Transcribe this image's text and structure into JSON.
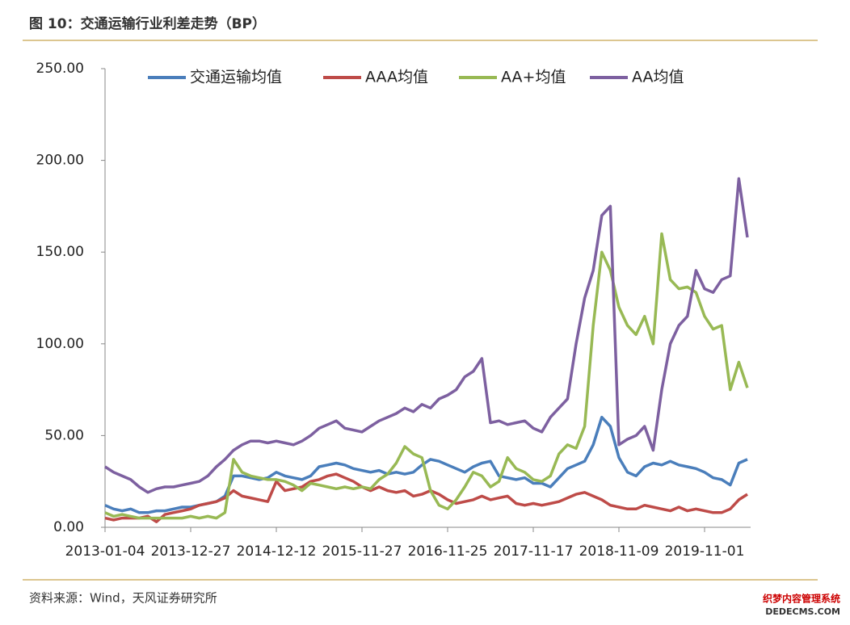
{
  "header": {
    "title": "图 10：交通运输行业利差走势（BP）"
  },
  "chart_data": {
    "type": "line",
    "categories": [
      "2013-01-04",
      null,
      null,
      null,
      null,
      null,
      null,
      null,
      null,
      null,
      "2013-12-27",
      null,
      null,
      null,
      null,
      null,
      null,
      null,
      null,
      null,
      "2014-12-12",
      null,
      null,
      null,
      null,
      null,
      null,
      null,
      null,
      null,
      "2015-11-27",
      null,
      null,
      null,
      null,
      null,
      null,
      null,
      null,
      null,
      "2016-11-25",
      null,
      null,
      null,
      null,
      null,
      null,
      null,
      null,
      null,
      "2017-11-17",
      null,
      null,
      null,
      null,
      null,
      null,
      null,
      null,
      null,
      "2018-11-09",
      null,
      null,
      null,
      null,
      null,
      null,
      null,
      null,
      null,
      "2019-11-01",
      null,
      null,
      null,
      null,
      null
    ],
    "series": [
      {
        "name": "交通运输均值",
        "color": "#4a7ebb",
        "values": [
          12,
          10,
          9,
          10,
          8,
          8,
          9,
          9,
          10,
          11,
          11,
          12,
          13,
          14,
          17,
          28,
          28,
          27,
          26,
          27,
          30,
          28,
          27,
          26,
          28,
          33,
          34,
          35,
          34,
          32,
          31,
          30,
          31,
          29,
          30,
          29,
          30,
          34,
          37,
          36,
          34,
          32,
          30,
          33,
          35,
          36,
          28,
          27,
          26,
          27,
          24,
          24,
          22,
          27,
          32,
          34,
          36,
          45,
          60,
          55,
          38,
          30,
          28,
          33,
          35,
          34,
          36,
          34,
          33,
          32,
          30,
          27,
          26,
          23,
          35,
          37
        ]
      },
      {
        "name": "AAA均值",
        "color": "#be4b48",
        "values": [
          5,
          4,
          5,
          5,
          5,
          6,
          3,
          7,
          8,
          9,
          10,
          12,
          13,
          14,
          16,
          20,
          17,
          16,
          15,
          14,
          25,
          20,
          21,
          22,
          25,
          26,
          28,
          29,
          27,
          25,
          22,
          20,
          22,
          20,
          19,
          20,
          17,
          18,
          20,
          18,
          15,
          13,
          14,
          15,
          17,
          15,
          16,
          17,
          13,
          12,
          13,
          12,
          13,
          14,
          16,
          18,
          19,
          17,
          15,
          12,
          11,
          10,
          10,
          12,
          11,
          10,
          9,
          11,
          9,
          10,
          9,
          8,
          8,
          10,
          15,
          18
        ]
      },
      {
        "name": "AA+均值",
        "color": "#98b954",
        "values": [
          8,
          6,
          7,
          6,
          5,
          5,
          5,
          5,
          5,
          5,
          6,
          5,
          6,
          5,
          8,
          37,
          30,
          28,
          27,
          26,
          26,
          25,
          23,
          20,
          24,
          23,
          22,
          21,
          22,
          21,
          22,
          21,
          26,
          29,
          35,
          44,
          40,
          38,
          20,
          12,
          10,
          15,
          22,
          30,
          28,
          22,
          25,
          38,
          32,
          30,
          26,
          25,
          28,
          40,
          45,
          43,
          55,
          110,
          150,
          140,
          120,
          110,
          105,
          115,
          100,
          160,
          135,
          130,
          131,
          128,
          115,
          108,
          110,
          75,
          90,
          76
        ]
      },
      {
        "name": "AA均值",
        "color": "#7d60a0",
        "values": [
          33,
          30,
          28,
          26,
          22,
          19,
          21,
          22,
          22,
          23,
          24,
          25,
          28,
          33,
          37,
          42,
          45,
          47,
          47,
          46,
          47,
          46,
          45,
          47,
          50,
          54,
          56,
          58,
          54,
          53,
          52,
          55,
          58,
          60,
          62,
          65,
          63,
          67,
          65,
          70,
          72,
          75,
          82,
          85,
          92,
          57,
          58,
          56,
          57,
          58,
          54,
          52,
          60,
          65,
          70,
          100,
          125,
          140,
          170,
          175,
          45,
          48,
          50,
          55,
          42,
          75,
          100,
          110,
          115,
          140,
          130,
          128,
          135,
          137,
          190,
          158
        ]
      }
    ],
    "ylim": [
      0,
      250
    ],
    "yticks": [
      {
        "value": 0,
        "label": "0.00"
      },
      {
        "value": 50,
        "label": "50.00"
      },
      {
        "value": 100,
        "label": "100.00"
      },
      {
        "value": 150,
        "label": "150.00"
      },
      {
        "value": 200,
        "label": "200.00"
      },
      {
        "value": 250,
        "label": "250.00"
      }
    ],
    "legend": "top"
  },
  "footer": {
    "source": "资料来源：Wind，天风证券研究所",
    "watermark": "织梦内容管理系统",
    "watermark_url": "DEDECMS.COM"
  }
}
